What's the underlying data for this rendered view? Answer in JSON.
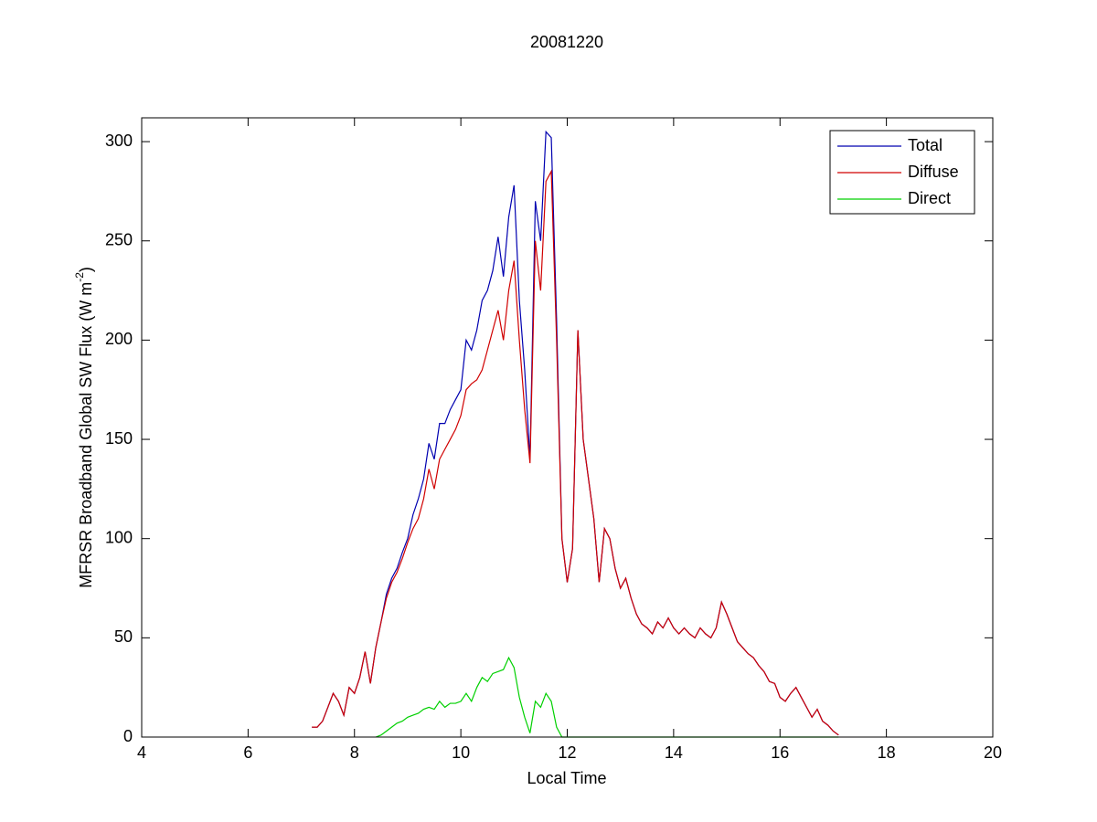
{
  "chart_data": {
    "type": "line",
    "title": "20081220",
    "x_label": "Local Time",
    "y_label": {
      "text": "MFRSR Broadband Global SW Flux (W m",
      "superscript": "-2",
      "close": ")"
    },
    "xlim": [
      4,
      20
    ],
    "xticks": [
      4,
      6,
      8,
      10,
      12,
      14,
      16,
      18,
      20
    ],
    "ylim": [
      0,
      312
    ],
    "yticks": [
      0,
      50,
      100,
      150,
      200,
      250,
      300
    ],
    "grid": false,
    "legend": "northeast",
    "x": [
      7.2,
      7.3,
      7.4,
      7.5,
      7.6,
      7.7,
      7.8,
      7.9,
      8.0,
      8.1,
      8.2,
      8.3,
      8.4,
      8.5,
      8.6,
      8.7,
      8.8,
      8.9,
      9.0,
      9.1,
      9.2,
      9.3,
      9.4,
      9.5,
      9.6,
      9.7,
      9.8,
      9.9,
      10.0,
      10.1,
      10.2,
      10.3,
      10.4,
      10.5,
      10.6,
      10.7,
      10.8,
      10.9,
      11.0,
      11.1,
      11.2,
      11.3,
      11.4,
      11.5,
      11.6,
      11.7,
      11.8,
      11.9,
      12.0,
      12.1,
      12.2,
      12.3,
      12.4,
      12.5,
      12.6,
      12.7,
      12.8,
      12.9,
      13.0,
      13.1,
      13.2,
      13.3,
      13.4,
      13.5,
      13.6,
      13.7,
      13.8,
      13.9,
      14.0,
      14.1,
      14.2,
      14.3,
      14.4,
      14.5,
      14.6,
      14.7,
      14.8,
      14.9,
      15.0,
      15.1,
      15.2,
      15.3,
      15.4,
      15.5,
      15.6,
      15.7,
      15.8,
      15.9,
      16.0,
      16.1,
      16.2,
      16.3,
      16.4,
      16.5,
      16.6,
      16.7,
      16.8,
      16.9,
      17.0,
      17.1
    ],
    "series": [
      {
        "name": "Total",
        "color": "#0000b0",
        "values": [
          5,
          5,
          8,
          15,
          22,
          18,
          11,
          25,
          22,
          30,
          43,
          27,
          45,
          58,
          72,
          80,
          85,
          93,
          100,
          112,
          120,
          130,
          148,
          140,
          158,
          158,
          165,
          170,
          175,
          200,
          195,
          205,
          220,
          225,
          235,
          252,
          232,
          262,
          278,
          220,
          185,
          140,
          270,
          250,
          305,
          302,
          210,
          100,
          78,
          95,
          205,
          150,
          130,
          110,
          78,
          105,
          100,
          85,
          75,
          80,
          70,
          62,
          57,
          55,
          52,
          58,
          55,
          60,
          55,
          52,
          55,
          52,
          50,
          55,
          52,
          50,
          55,
          68,
          62,
          55,
          48,
          45,
          42,
          40,
          36,
          33,
          28,
          27,
          20,
          18,
          22,
          25,
          20,
          15,
          10,
          14,
          8,
          6,
          3,
          1
        ]
      },
      {
        "name": "Diffuse",
        "color": "#d00000",
        "values": [
          5,
          5,
          8,
          15,
          22,
          18,
          11,
          25,
          22,
          30,
          43,
          27,
          45,
          58,
          70,
          78,
          83,
          90,
          98,
          105,
          110,
          120,
          135,
          125,
          140,
          145,
          150,
          155,
          162,
          175,
          178,
          180,
          185,
          195,
          205,
          215,
          200,
          225,
          240,
          200,
          165,
          138,
          250,
          225,
          280,
          285,
          200,
          100,
          78,
          95,
          205,
          150,
          130,
          110,
          78,
          105,
          100,
          85,
          75,
          80,
          70,
          62,
          57,
          55,
          52,
          58,
          55,
          60,
          55,
          52,
          55,
          52,
          50,
          55,
          52,
          50,
          55,
          68,
          62,
          55,
          48,
          45,
          42,
          40,
          36,
          33,
          28,
          27,
          20,
          18,
          22,
          25,
          20,
          15,
          10,
          14,
          8,
          6,
          3,
          1
        ]
      },
      {
        "name": "Direct",
        "color": "#00d000",
        "values": [
          null,
          null,
          null,
          null,
          null,
          null,
          null,
          null,
          null,
          null,
          null,
          null,
          0,
          1,
          3,
          5,
          7,
          8,
          10,
          11,
          12,
          14,
          15,
          14,
          18,
          15,
          17,
          17,
          18,
          22,
          18,
          25,
          30,
          28,
          32,
          33,
          34,
          40,
          35,
          20,
          10,
          2,
          18,
          15,
          22,
          18,
          5,
          0,
          0,
          0,
          0,
          0,
          0,
          0,
          0,
          0,
          0,
          0,
          0,
          0,
          0,
          0,
          0,
          0,
          0,
          0,
          0,
          0,
          0,
          0,
          0,
          0,
          0,
          0,
          0,
          0,
          0,
          0,
          0,
          0,
          0,
          0,
          0,
          0,
          0,
          0,
          0,
          0,
          0,
          0,
          0,
          0,
          0,
          0,
          0,
          0,
          0,
          0,
          0,
          0
        ]
      }
    ]
  }
}
